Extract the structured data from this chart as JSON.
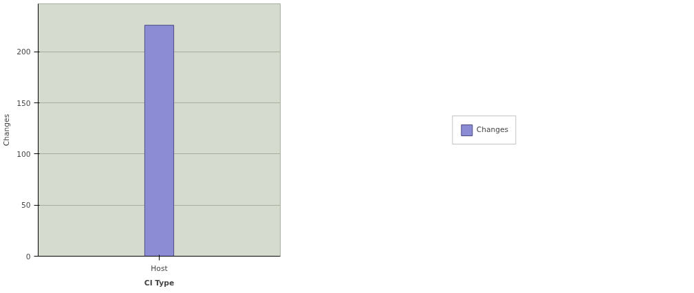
{
  "chart_data": {
    "type": "bar",
    "xlabel": "CI Type",
    "ylabel": "Changes",
    "categories": [
      "Host"
    ],
    "series": [
      {
        "name": "Changes",
        "color": "#8c8cd4",
        "values": [
          226
        ]
      }
    ],
    "ylim": [
      0,
      247
    ],
    "yticks": [
      0,
      50,
      100,
      150,
      200
    ],
    "grid": "y",
    "legend": "right"
  }
}
